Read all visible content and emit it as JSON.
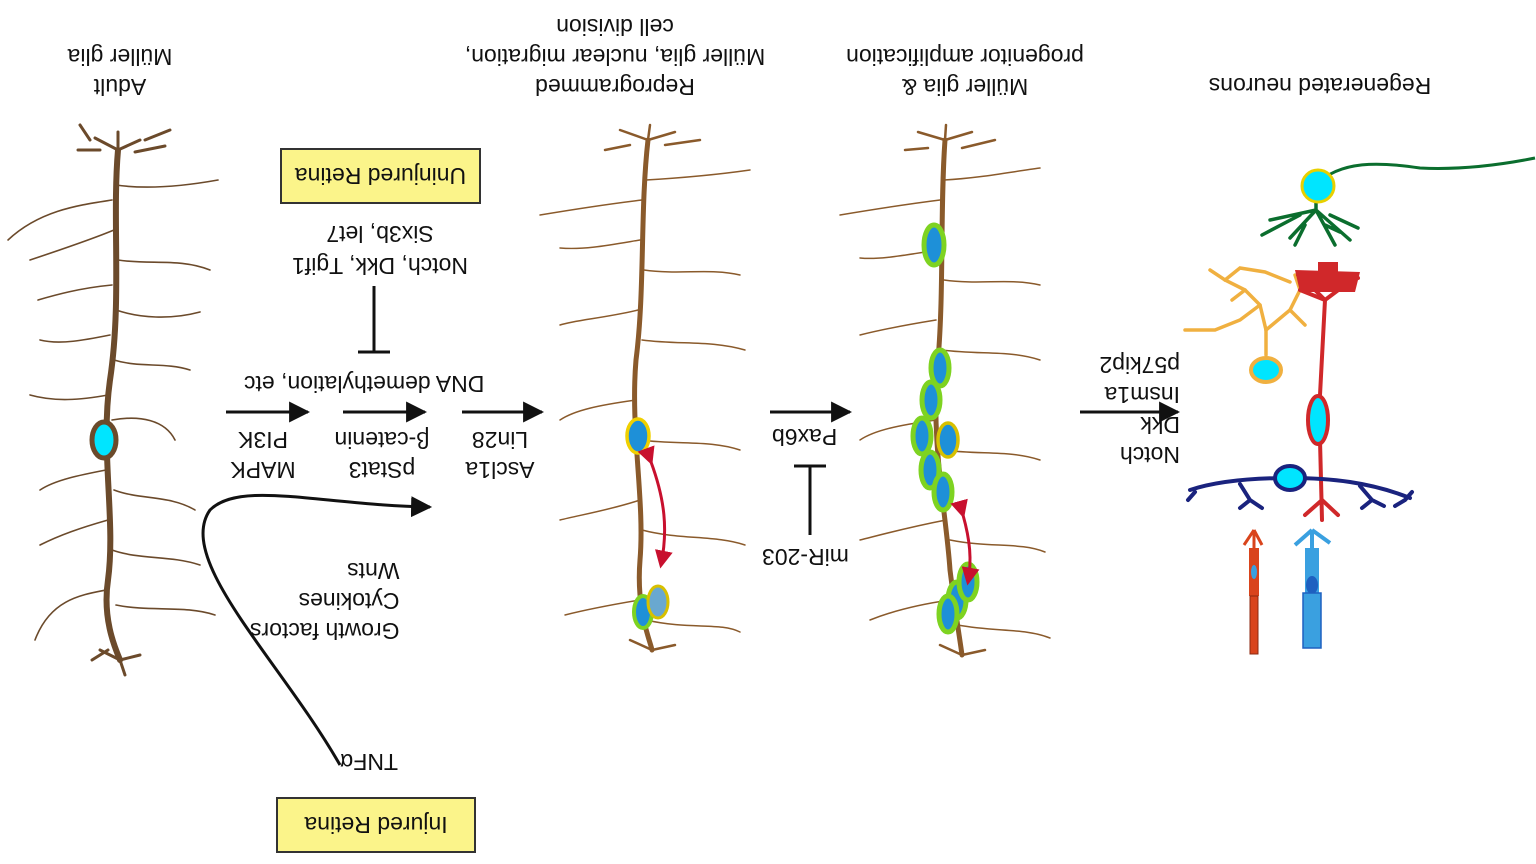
{
  "stage_titles": {
    "adult_line1": "Adult",
    "adult_line2": "Müller glia",
    "reprog_line1": "Reprogrammed",
    "reprog_line2": "Müller glia, nuclear migration,",
    "reprog_line3": "cell division",
    "amp_line1": "Müller glia &",
    "amp_line2": "progenitor amplification",
    "regen_line1": "Regenerated neurons"
  },
  "boxes": {
    "uninjured": "Uninjured Retina",
    "injured": "Injured Retina"
  },
  "inhibitors_uninjured": {
    "line1": "Notch, Dkk, Tgif1",
    "line2": "Six3b, let7"
  },
  "factors": {
    "demethylation": "DNA demethylation, etc",
    "col1_line1": "MAPK",
    "col1_line2": "PI3K",
    "col2_line1": "pStat3",
    "col2_line2": "β-catenin",
    "col3_line1": "Ascl1a",
    "col3_line2": "Lin28",
    "pax6b": "Pax6b",
    "mir203": "miR-203",
    "late_line1": "Notch",
    "late_line2": "Dkk",
    "late_line3": "Insm1a",
    "late_line4": "p57kip2"
  },
  "extracellular": {
    "line1": "Growth factors",
    "line2": "Cytokines",
    "line3": "Wnts",
    "tnf": "TNFα"
  },
  "colors": {
    "glia": "#6b4a2b",
    "nucleus": "#1e90d8",
    "progenitor": "#7ed321",
    "migration_arrow": "#c8102e",
    "ganglion": "#0b6e2e",
    "amacrine": "#f0b040",
    "bipolar": "#d0282a",
    "horizontal": "#1a237e",
    "rod": "#3aa0e0",
    "cone": "#d9441c",
    "box_fill": "#fbf48a"
  }
}
